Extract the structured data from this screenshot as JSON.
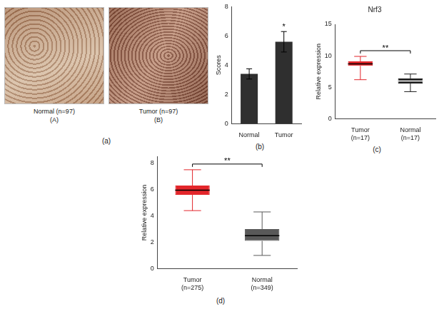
{
  "chart_data": [
    {
      "type": "image",
      "panel": "(a)",
      "images": [
        {
          "caption": "Normal (n=97)",
          "label": "(A)"
        },
        {
          "caption": "Tumor (n=97)",
          "label": "(B)"
        }
      ]
    },
    {
      "type": "bar",
      "panel": "(b)",
      "categories": [
        "Normal",
        "Tumor"
      ],
      "values": [
        3.4,
        5.6
      ],
      "errors": [
        0.35,
        0.7
      ],
      "color": "#2f2f2f",
      "y_label": "Scores",
      "ylim": [
        0,
        8
      ],
      "yticks": [
        0,
        2,
        4,
        6,
        8
      ],
      "grid": false,
      "significance": {
        "text": "*",
        "category": "Tumor"
      }
    },
    {
      "type": "box",
      "panel": "(c)",
      "title": "Nrf3",
      "categories": [
        [
          "Tumor",
          "(n=17)"
        ],
        [
          "Normal",
          "(n=17)"
        ]
      ],
      "stats": [
        {
          "min": 6.2,
          "q1": 8.4,
          "median": 8.7,
          "q3": 9.1,
          "max": 9.9
        },
        {
          "min": 4.3,
          "q1": 5.6,
          "median": 6.0,
          "q3": 6.4,
          "max": 7.1
        }
      ],
      "colors": [
        "#e3262b",
        "#1f1f1f"
      ],
      "y_label": "Relative expression",
      "ylim": [
        0,
        15
      ],
      "yticks": [
        0,
        5,
        10,
        15
      ],
      "grid": false,
      "significance": {
        "text": "**"
      }
    },
    {
      "type": "box",
      "panel": "(d)",
      "categories": [
        [
          "Tumor",
          "(n=275)"
        ],
        [
          "Normal",
          "(n=349)"
        ]
      ],
      "stats": [
        {
          "min": 4.4,
          "q1": 5.6,
          "median": 5.95,
          "q3": 6.3,
          "max": 7.5
        },
        {
          "min": 1.0,
          "q1": 2.1,
          "median": 2.5,
          "q3": 3.0,
          "max": 4.3
        }
      ],
      "colors": [
        "#e3262b",
        "#595959"
      ],
      "y_label": "Relative expression",
      "ylim": [
        0,
        8.5
      ],
      "yticks": [
        0,
        2,
        4,
        6,
        8
      ],
      "grid": false,
      "significance": {
        "text": "**"
      }
    }
  ]
}
